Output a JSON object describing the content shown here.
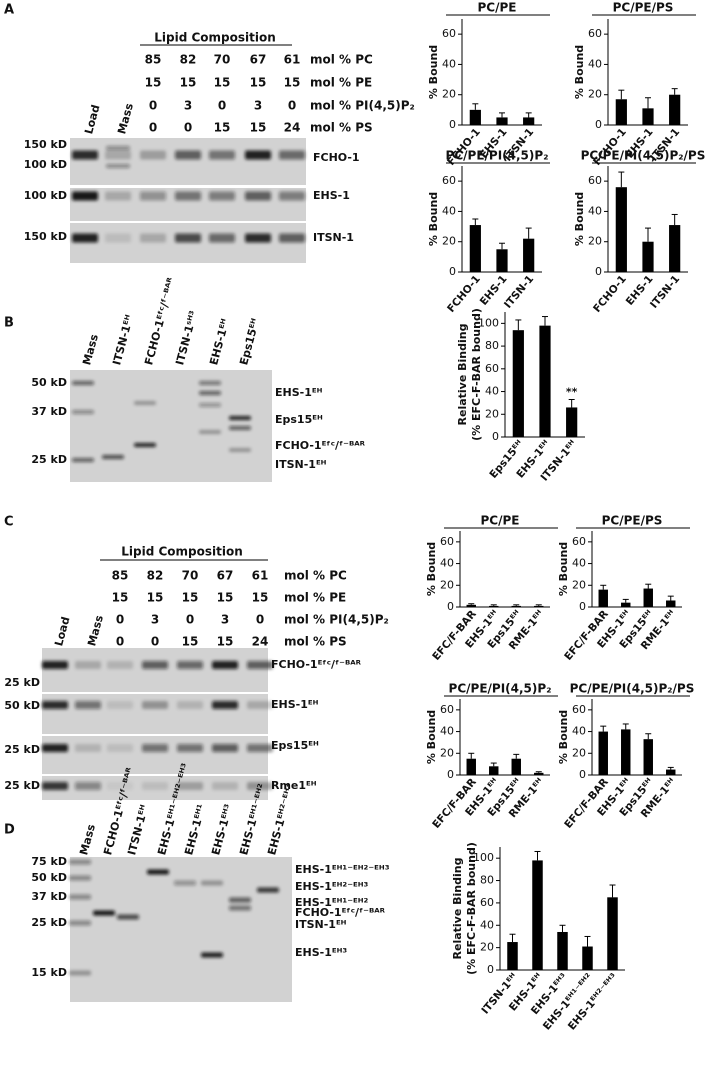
{
  "panels": [
    "A",
    "B",
    "C",
    "D"
  ],
  "gel_a": {
    "header": "Lipid Composition",
    "table": [
      [
        85,
        82,
        70,
        67,
        61
      ],
      [
        15,
        15,
        15,
        15,
        15
      ],
      [
        0,
        3,
        0,
        3,
        0
      ],
      [
        0,
        0,
        15,
        15,
        24
      ]
    ],
    "row_labels": [
      "mol % PC",
      "mol % PE",
      "mol % PI(4,5)P₂",
      "mol % PS"
    ],
    "lanes": [
      "Load",
      "Mass"
    ],
    "markers": [
      "150 kD",
      "100 kD",
      "100 kD",
      "150 kD"
    ],
    "proteins": [
      "FCHO-1",
      "EHS-1",
      "ITSN-1"
    ]
  },
  "gel_b": {
    "lanes": [
      "Mass",
      "ITSN-1ᴱᴴ",
      "FCHO-1ᴱᶠᶜ/ᶠ⁻ᴮᴬᴿ",
      "ITSN-1ˢᴴ³",
      "EHS-1ᴱᴴ",
      "Eps15ᴱᴴ"
    ],
    "markers": [
      "50 kD",
      "37 kD",
      "25 kD"
    ],
    "proteins": [
      "EHS-1ᴱᴴ",
      "Eps15ᴱᴴ",
      "FCHO-1ᴱᶠᶜ/ᶠ⁻ᴮᴬᴿ",
      "ITSN-1ᴱᴴ"
    ]
  },
  "gel_c": {
    "header": "Lipid Composition",
    "table": [
      [
        85,
        82,
        70,
        67,
        61
      ],
      [
        15,
        15,
        15,
        15,
        15
      ],
      [
        0,
        3,
        0,
        3,
        0
      ],
      [
        0,
        0,
        15,
        15,
        24
      ]
    ],
    "row_labels": [
      "mol % PC",
      "mol % PE",
      "mol % PI(4,5)P₂",
      "mol % PS"
    ],
    "lanes": [
      "Load",
      "Mass"
    ],
    "markers": [
      "25 kD",
      "50 kD",
      "25 kD",
      "25 kD"
    ],
    "proteins": [
      "FCHO-1ᴱᶠᶜ/ᶠ⁻ᴮᴬᴿ",
      "EHS-1ᴱᴴ",
      "Eps15ᴱᴴ",
      "Rme1ᴱᴴ"
    ]
  },
  "gel_d": {
    "lanes": [
      "Mass",
      "FCHO-1ᴱᶠᶜ/ᶠ⁻ᴮᴬᴿ",
      "ITSN-1ᴱᴴ",
      "EHS-1ᴱᴴ¹⁻ᴱᴴ²⁻ᴱᴴ³",
      "EHS-1ᴱᴴ¹",
      "EHS-1ᴱᴴ³",
      "EHS-1ᴱᴴ¹⁻ᴱᴴ²",
      "EHS-1ᴱᴴ²⁻ᴱᴴ³"
    ],
    "markers": [
      "75 kD",
      "50 kD",
      "37 kD",
      "25 kD",
      "15 kD"
    ],
    "proteins": [
      "EHS-1ᴱᴴ¹⁻ᴱᴴ²⁻ᴱᴴ³",
      "EHS-1ᴱᴴ²⁻ᴱᴴ³",
      "EHS-1ᴱᴴ¹⁻ᴱᴴ²",
      "FCHO-1ᴱᶠᶜ/ᶠ⁻ᴮᴬᴿ",
      "ITSN-1ᴱᴴ",
      "EHS-1ᴱᴴ³"
    ]
  },
  "chart_data": [
    {
      "type": "bar",
      "title": "PC/PE",
      "ylabel": [
        "% Bound"
      ],
      "categories": [
        "FCHO-1",
        "EHS-1",
        "ITSN-1"
      ],
      "values": [
        10,
        5,
        5
      ],
      "errors": [
        4,
        3,
        3
      ],
      "color": "#000000",
      "ylim": [
        0,
        70
      ],
      "yticks": [
        0,
        20,
        40,
        60
      ]
    },
    {
      "type": "bar",
      "title": "PC/PE/PS",
      "ylabel": [
        "% Bound"
      ],
      "categories": [
        "FCHO-1",
        "EHS-1",
        "ITSN-1"
      ],
      "values": [
        17,
        11,
        20
      ],
      "errors": [
        6,
        7,
        4
      ],
      "color": "#000000",
      "ylim": [
        0,
        70
      ],
      "yticks": [
        0,
        20,
        40,
        60
      ]
    },
    {
      "type": "bar",
      "title": "PC/PE/PI(4,5)P₂",
      "ylabel": [
        "% Bound"
      ],
      "categories": [
        "FCHO-1",
        "EHS-1",
        "ITSN-1"
      ],
      "values": [
        31,
        15,
        22
      ],
      "errors": [
        4,
        4,
        7
      ],
      "color": "#000000",
      "ylim": [
        0,
        70
      ],
      "yticks": [
        0,
        20,
        40,
        60
      ]
    },
    {
      "type": "bar",
      "title": "PC/PE/PI(4,5)P₂/PS",
      "ylabel": [
        "% Bound"
      ],
      "categories": [
        "FCHO-1",
        "EHS-1",
        "ITSN-1"
      ],
      "values": [
        56,
        20,
        31
      ],
      "errors": [
        10,
        9,
        7
      ],
      "color": "#000000",
      "ylim": [
        0,
        70
      ],
      "yticks": [
        0,
        20,
        40,
        60
      ]
    },
    {
      "type": "bar",
      "ylabel": [
        "Relative Binding",
        "(% EFC-F-BAR bound)"
      ],
      "categories": [
        "Eps15ᴱᴴ",
        "EHS-1ᴱᴴ",
        "ITSN-1ᴱᴴ"
      ],
      "values": [
        94,
        98,
        26
      ],
      "errors": [
        9,
        8,
        7
      ],
      "value_annotations": [
        null,
        null,
        "**"
      ],
      "color": "#000000",
      "ylim": [
        0,
        110
      ],
      "yticks": [
        0,
        20,
        40,
        60,
        80,
        100
      ]
    },
    {
      "type": "bar",
      "title": "PC/PE",
      "ylabel": [
        "% Bound"
      ],
      "categories": [
        "EFC/F-BAR",
        "EHS-1ᴱᴴ",
        "Eps15ᴱᴴ",
        "RME-1ᴱᴴ"
      ],
      "values": [
        2,
        1,
        1,
        1
      ],
      "errors": [
        1,
        1,
        1,
        1
      ],
      "color": "#000000",
      "ylim": [
        0,
        70
      ],
      "yticks": [
        0,
        20,
        40,
        60
      ]
    },
    {
      "type": "bar",
      "title": "PC/PE/PS",
      "ylabel": [
        "% Bound"
      ],
      "categories": [
        "EFC/F-BAR",
        "EHS-1ᴱᴴ",
        "Eps15ᴱᴴ",
        "RME-1ᴱᴴ"
      ],
      "values": [
        16,
        4,
        17,
        6
      ],
      "errors": [
        4,
        3,
        4,
        4
      ],
      "color": "#000000",
      "ylim": [
        0,
        70
      ],
      "yticks": [
        0,
        20,
        40,
        60
      ]
    },
    {
      "type": "bar",
      "title": "PC/PE/PI(4,5)P₂",
      "ylabel": [
        "% Bound"
      ],
      "categories": [
        "EFC/F-BAR",
        "EHS-1ᴱᴴ",
        "Eps15ᴱᴴ",
        "RME-1ᴱᴴ"
      ],
      "values": [
        15,
        8,
        15,
        2
      ],
      "errors": [
        5,
        3,
        4,
        1
      ],
      "color": "#000000",
      "ylim": [
        0,
        70
      ],
      "yticks": [
        0,
        20,
        40,
        60
      ]
    },
    {
      "type": "bar",
      "title": "PC/PE/PI(4,5)P₂/PS",
      "ylabel": [
        "% Bound"
      ],
      "categories": [
        "EFC/F-BAR",
        "EHS-1ᴱᴴ",
        "Eps15ᴱᴴ",
        "RME-1ᴱᴴ"
      ],
      "values": [
        40,
        42,
        33,
        5
      ],
      "errors": [
        5,
        5,
        5,
        2
      ],
      "color": "#000000",
      "ylim": [
        0,
        70
      ],
      "yticks": [
        0,
        20,
        40,
        60
      ]
    },
    {
      "type": "bar",
      "ylabel": [
        "Relative Binding",
        "(% EFC-F-BAR bound)"
      ],
      "categories": [
        "ITSN-1ᴱᴴ",
        "EHS-1ᴱᴴ",
        "EHS-1ᴱᴴ³",
        "EHS-1ᴱᴴ¹⁻ᴱᴴ²",
        "EHS-1ᴱᴴ²⁻ᴱᴴ³"
      ],
      "values": [
        25,
        98,
        34,
        21,
        65
      ],
      "errors": [
        7,
        8,
        6,
        9,
        11
      ],
      "color": "#000000",
      "ylim": [
        0,
        110
      ],
      "yticks": [
        0,
        20,
        40,
        60,
        80,
        100
      ]
    }
  ]
}
